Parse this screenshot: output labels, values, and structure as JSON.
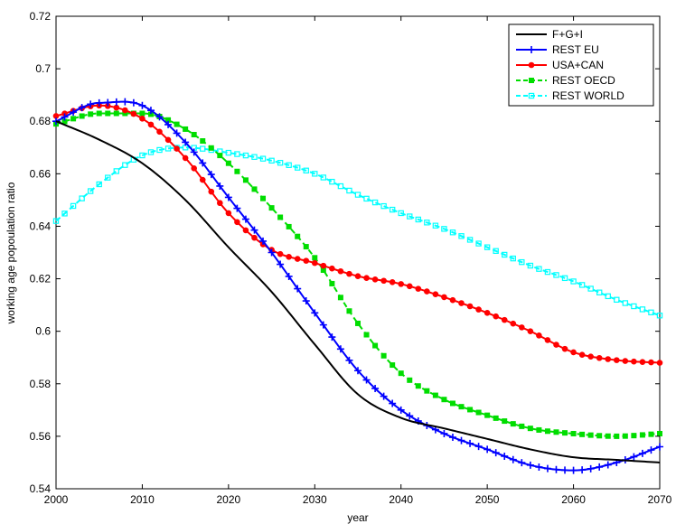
{
  "chart_data": {
    "type": "line",
    "title": "",
    "xlabel": "year",
    "ylabel": "working age popoulation ratio",
    "xlim": [
      2000,
      2070
    ],
    "ylim": [
      0.54,
      0.72
    ],
    "x_ticks": [
      2000,
      2010,
      2020,
      2030,
      2040,
      2050,
      2060,
      2070
    ],
    "y_ticks": [
      0.54,
      0.56,
      0.58,
      0.6,
      0.62,
      0.64,
      0.66,
      0.68,
      0.7,
      0.72
    ],
    "x_tick_labels": [
      "2000",
      "2010",
      "2020",
      "2030",
      "2040",
      "2050",
      "2060",
      "2070"
    ],
    "y_tick_labels": [
      "0.54",
      "0.56",
      "0.58",
      "0.6",
      "0.62",
      "0.64",
      "0.66",
      "0.68",
      "0.7",
      "0.72"
    ],
    "grid": false,
    "legend_position": "top-right",
    "series": [
      {
        "name": "F+G+I",
        "color": "#000000",
        "marker": "none",
        "x": [
          2000,
          2005,
          2010,
          2015,
          2020,
          2025,
          2030,
          2035,
          2040,
          2045,
          2050,
          2055,
          2060,
          2065,
          2070
        ],
        "y": [
          0.68,
          0.673,
          0.664,
          0.65,
          0.632,
          0.615,
          0.595,
          0.576,
          0.567,
          0.563,
          0.559,
          0.555,
          0.552,
          0.551,
          0.55
        ]
      },
      {
        "name": "REST EU",
        "color": "#0000ff",
        "marker": "plus",
        "x": [
          2000,
          2005,
          2010,
          2015,
          2020,
          2025,
          2030,
          2035,
          2040,
          2045,
          2050,
          2055,
          2060,
          2065,
          2070
        ],
        "y": [
          0.68,
          0.687,
          0.686,
          0.672,
          0.651,
          0.63,
          0.607,
          0.585,
          0.57,
          0.561,
          0.555,
          0.549,
          0.547,
          0.55,
          0.556
        ]
      },
      {
        "name": "USA+CAN",
        "color": "#ff0000",
        "marker": "circle",
        "x": [
          2000,
          2005,
          2010,
          2015,
          2020,
          2025,
          2030,
          2035,
          2040,
          2045,
          2050,
          2055,
          2060,
          2065,
          2070
        ],
        "y": [
          0.682,
          0.686,
          0.681,
          0.666,
          0.645,
          0.631,
          0.626,
          0.621,
          0.618,
          0.613,
          0.607,
          0.6,
          0.592,
          0.589,
          0.588
        ]
      },
      {
        "name": "REST OECD",
        "color": "#00dd00",
        "marker": "square",
        "x": [
          2000,
          2005,
          2010,
          2015,
          2020,
          2025,
          2030,
          2035,
          2040,
          2045,
          2050,
          2055,
          2060,
          2065,
          2070
        ],
        "y": [
          0.679,
          0.683,
          0.683,
          0.677,
          0.664,
          0.647,
          0.628,
          0.603,
          0.584,
          0.574,
          0.568,
          0.563,
          0.561,
          0.56,
          0.561
        ]
      },
      {
        "name": "REST WORLD",
        "color": "#00ffff",
        "marker": "square-open",
        "x": [
          2000,
          2005,
          2010,
          2015,
          2020,
          2025,
          2030,
          2035,
          2040,
          2045,
          2050,
          2055,
          2060,
          2065,
          2070
        ],
        "y": [
          0.642,
          0.656,
          0.667,
          0.67,
          0.668,
          0.665,
          0.66,
          0.652,
          0.645,
          0.639,
          0.632,
          0.625,
          0.619,
          0.612,
          0.606
        ]
      }
    ]
  }
}
